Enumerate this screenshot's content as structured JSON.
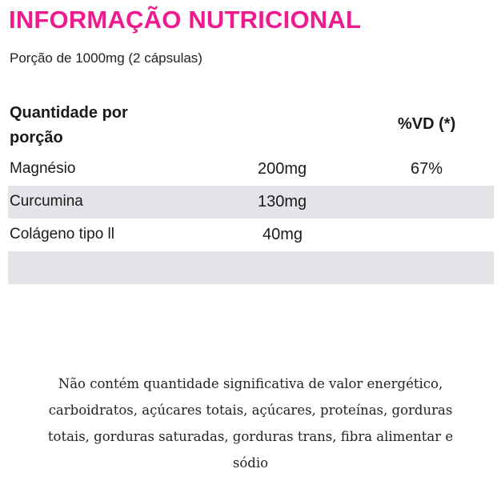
{
  "title": "INFORMAÇÃO NUTRICIONAL",
  "portion": "Porção de 1000mg (2 cápsulas)",
  "header": {
    "quantity_line1": "Quantidade por",
    "quantity_line2": "porção",
    "vd": "%VD (*)"
  },
  "rows": [
    {
      "name": "Magnésio",
      "amount": "200mg",
      "vd": "67%"
    },
    {
      "name": "Curcumina",
      "amount": "130mg",
      "vd": ""
    },
    {
      "name": "Colágeno tipo ll",
      "amount": "40mg",
      "vd": ""
    },
    {
      "name": "",
      "amount": "",
      "vd": ""
    }
  ],
  "note_lines": [
    "Não contém quantidade significativa de valor energético,",
    "carboidratos, açúcares totais, açúcares, proteínas,  gorduras",
    "totais, gorduras saturadas, gorduras trans, fibra alimentar e",
    "sódio"
  ],
  "colors": {
    "title": "#ef1a8e",
    "row_shade": "#e6e3e8"
  }
}
